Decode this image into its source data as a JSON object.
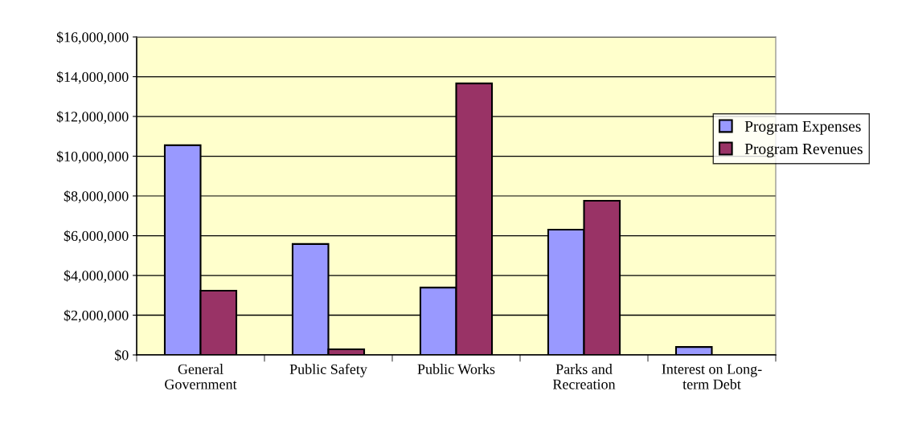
{
  "chart_data": {
    "type": "bar",
    "categories": [
      "General\nGovernment",
      "Public Safety",
      "Public Works",
      "Parks and\nRecreation",
      "Interest on Long-\nterm Debt"
    ],
    "series": [
      {
        "name": "Program Expenses",
        "color": "#9999ff",
        "values": [
          10550000,
          5580000,
          3390000,
          6300000,
          400000
        ]
      },
      {
        "name": "Program Revenues",
        "color": "#993366",
        "values": [
          3230000,
          280000,
          13660000,
          7760000,
          null
        ]
      }
    ],
    "ylim": [
      0,
      16000000
    ],
    "yticks": [
      {
        "value": 0,
        "label": "$0"
      },
      {
        "value": 2000000,
        "label": "$2,000,000"
      },
      {
        "value": 4000000,
        "label": "$4,000,000"
      },
      {
        "value": 6000000,
        "label": "$6,000,000"
      },
      {
        "value": 8000000,
        "label": "$8,000,000"
      },
      {
        "value": 10000000,
        "label": "$10,000,000"
      },
      {
        "value": 12000000,
        "label": "$12,000,000"
      },
      {
        "value": 14000000,
        "label": "$14,000,000"
      },
      {
        "value": 16000000,
        "label": "$16,000,000"
      }
    ],
    "grid": "y",
    "legend": "right"
  }
}
